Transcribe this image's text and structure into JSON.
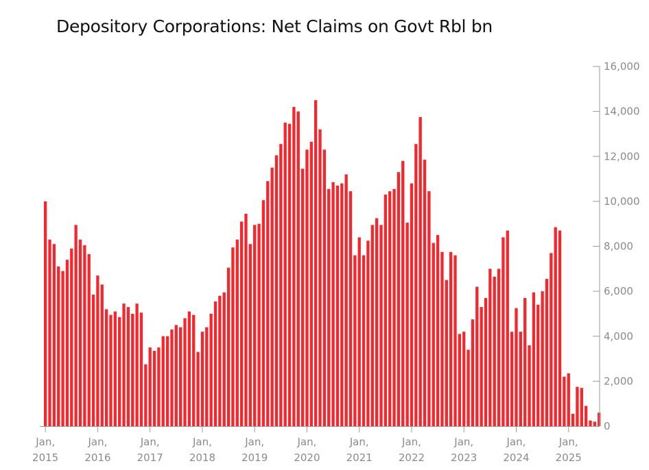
{
  "chart_data": {
    "type": "bar",
    "title": "Depository Corporations: Net Claims on Govt Rbl bn",
    "xlabel": "",
    "ylabel": "",
    "ylim": [
      0,
      16000
    ],
    "yticks": [
      0,
      2000,
      4000,
      6000,
      8000,
      10000,
      12000,
      14000,
      16000
    ],
    "ytick_labels": [
      "0",
      "2,000",
      "4,000",
      "6,000",
      "8,000",
      "10,000",
      "12,000",
      "14,000",
      "16,000"
    ],
    "x_tick_labels": [
      {
        "line1": "Jan,",
        "line2": "2015"
      },
      {
        "line1": "Jan,",
        "line2": "2016"
      },
      {
        "line1": "Jan,",
        "line2": "2017"
      },
      {
        "line1": "Jan,",
        "line2": "2018"
      },
      {
        "line1": "Jan,",
        "line2": "2019"
      },
      {
        "line1": "Jan,",
        "line2": "2020"
      },
      {
        "line1": "Jan,",
        "line2": "2021"
      },
      {
        "line1": "Jan,",
        "line2": "2022"
      },
      {
        "line1": "Jan,",
        "line2": "2023"
      },
      {
        "line1": "Jan,",
        "line2": "2024"
      },
      {
        "line1": "Jan,",
        "line2": "2025"
      }
    ],
    "bar_color": "#f5272c",
    "grid": false,
    "legend": "none",
    "start": "2015-01",
    "values": [
      10000,
      8300,
      8100,
      7100,
      6900,
      7400,
      7900,
      8950,
      8300,
      8050,
      7650,
      5850,
      6700,
      6300,
      5200,
      4950,
      5100,
      4850,
      5450,
      5300,
      5000,
      5450,
      5050,
      2750,
      3500,
      3350,
      3500,
      4000,
      4000,
      4300,
      4500,
      4400,
      4800,
      5100,
      4950,
      3300,
      4200,
      4400,
      5000,
      5550,
      5800,
      5950,
      7050,
      7950,
      8300,
      9100,
      9450,
      8100,
      8950,
      9000,
      10050,
      10900,
      11500,
      12050,
      12550,
      13500,
      13450,
      14200,
      14000,
      11450,
      12300,
      12650,
      14500,
      13200,
      12300,
      10550,
      10850,
      10700,
      10800,
      11200,
      10450,
      7600,
      8400,
      7600,
      8250,
      8950,
      9250,
      8950,
      10300,
      10450,
      10550,
      11300,
      11800,
      9050,
      10800,
      12550,
      13750,
      11850,
      10450,
      8150,
      8500,
      7750,
      6500,
      7750,
      7600,
      4100,
      4200,
      3400,
      4750,
      6200,
      5300,
      5700,
      7000,
      6650,
      7000,
      8400,
      8700,
      4200,
      5250,
      4200,
      5700,
      3600,
      5950,
      5400,
      6000,
      6550,
      7700,
      8850,
      8700,
      2200,
      2350,
      550,
      1750,
      1700,
      900,
      250,
      200,
      600
    ]
  }
}
